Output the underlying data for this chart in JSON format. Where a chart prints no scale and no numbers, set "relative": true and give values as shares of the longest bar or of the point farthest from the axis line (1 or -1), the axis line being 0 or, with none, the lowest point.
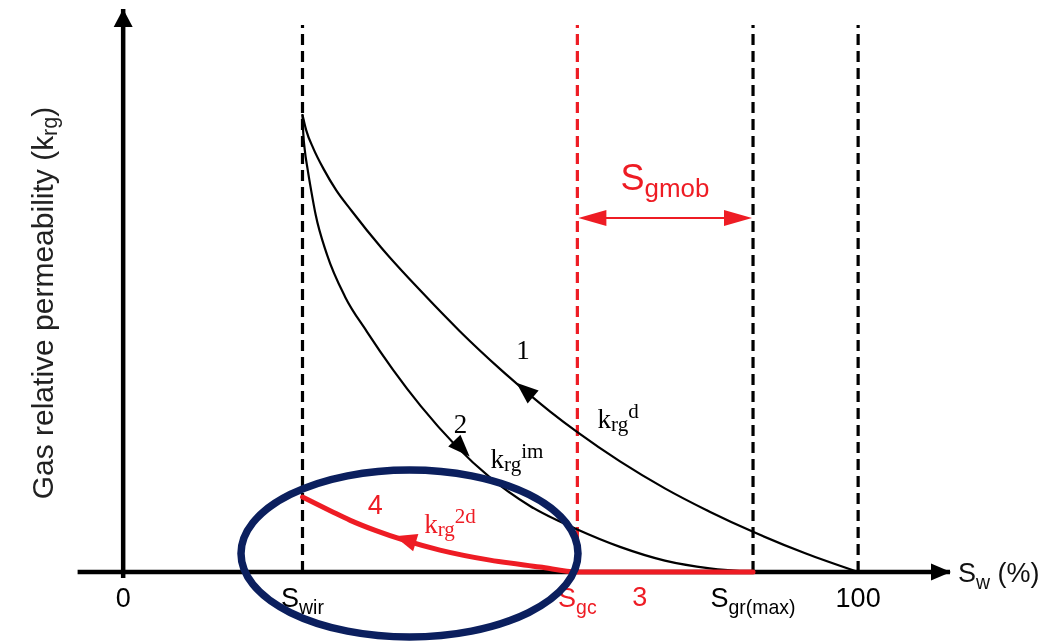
{
  "chart_data": {
    "type": "line",
    "relative": true,
    "xlabel": "S$_{w}$ (%)",
    "ylabel": "Gas relative permeability (k$_{rg}$)",
    "xlim": [
      -6.2,
      112.5
    ],
    "xticks": [
      0,
      {
        "value": 24.4,
        "label": "S$_{wir}$"
      },
      {
        "value": 61.8,
        "label": "S$_{gc}$"
      },
      {
        "value": 85.7,
        "label": "S$_{gr(max)}$"
      },
      100
    ],
    "series": [
      {
        "name": "k$_{rg}$$^{d}$",
        "color": "#000000",
        "x": [
          24.4,
          24.9,
          25.9,
          27.3,
          29.0,
          31.1,
          35.1,
          40.6,
          45.8,
          51.3,
          58.1,
          61.8,
          67.6,
          73.7,
          79.8,
          85.7,
          92.8,
          100
        ],
        "values": [
          1,
          0.967,
          0.926,
          0.881,
          0.835,
          0.79,
          0.71,
          0.613,
          0.527,
          0.444,
          0.351,
          0.306,
          0.242,
          0.183,
          0.132,
          0.088,
          0.041,
          0
        ]
      },
      {
        "name": "k$_{rg}$$^{im}$",
        "color": "#000000",
        "x": [
          24.4,
          24.5,
          24.7,
          25.1,
          25.6,
          26.2,
          27.7,
          30.2,
          33.2,
          36.7,
          40.5,
          49.9,
          55.4,
          61.8,
          67.6,
          73.7,
          79.8,
          85.7
        ],
        "values": [
          1,
          0.961,
          0.925,
          0.881,
          0.833,
          0.781,
          0.696,
          0.602,
          0.525,
          0.443,
          0.363,
          0.207,
          0.144,
          0.093,
          0.055,
          0.025,
          0.008,
          0
        ]
      },
      {
        "name": "k$_{rg}$$^{2d}$",
        "color": "#ee1c24",
        "x": [
          24.4,
          28.3,
          30.9,
          34.3,
          43.1,
          49.9,
          56.7,
          61.8,
          85.7
        ],
        "values": [
          0.164,
          0.133,
          0.113,
          0.091,
          0.048,
          0.026,
          0.011,
          0,
          0
        ]
      }
    ],
    "ref_lines": [
      {
        "axis": "x",
        "value": 24.4,
        "color": "#000000",
        "line_style": "dashed"
      },
      {
        "axis": "x",
        "value": 61.8,
        "color": "#ee1c24",
        "line_style": "dashed"
      },
      {
        "axis": "x",
        "value": 85.7,
        "color": "#000000",
        "line_style": "dashed"
      },
      {
        "axis": "x",
        "value": 100,
        "color": "#000000",
        "line_style": "dashed"
      }
    ],
    "annotations": [
      {
        "text": "1",
        "x": 54.4,
        "y": 0.4
      },
      {
        "text": "2",
        "x": 45.9,
        "y": 0.27
      },
      {
        "text": "3",
        "x": 70.3,
        "y": 0
      },
      {
        "text": "4",
        "x": 34.3,
        "y": 0.09
      },
      "S$_{gmob}$"
    ]
  }
}
